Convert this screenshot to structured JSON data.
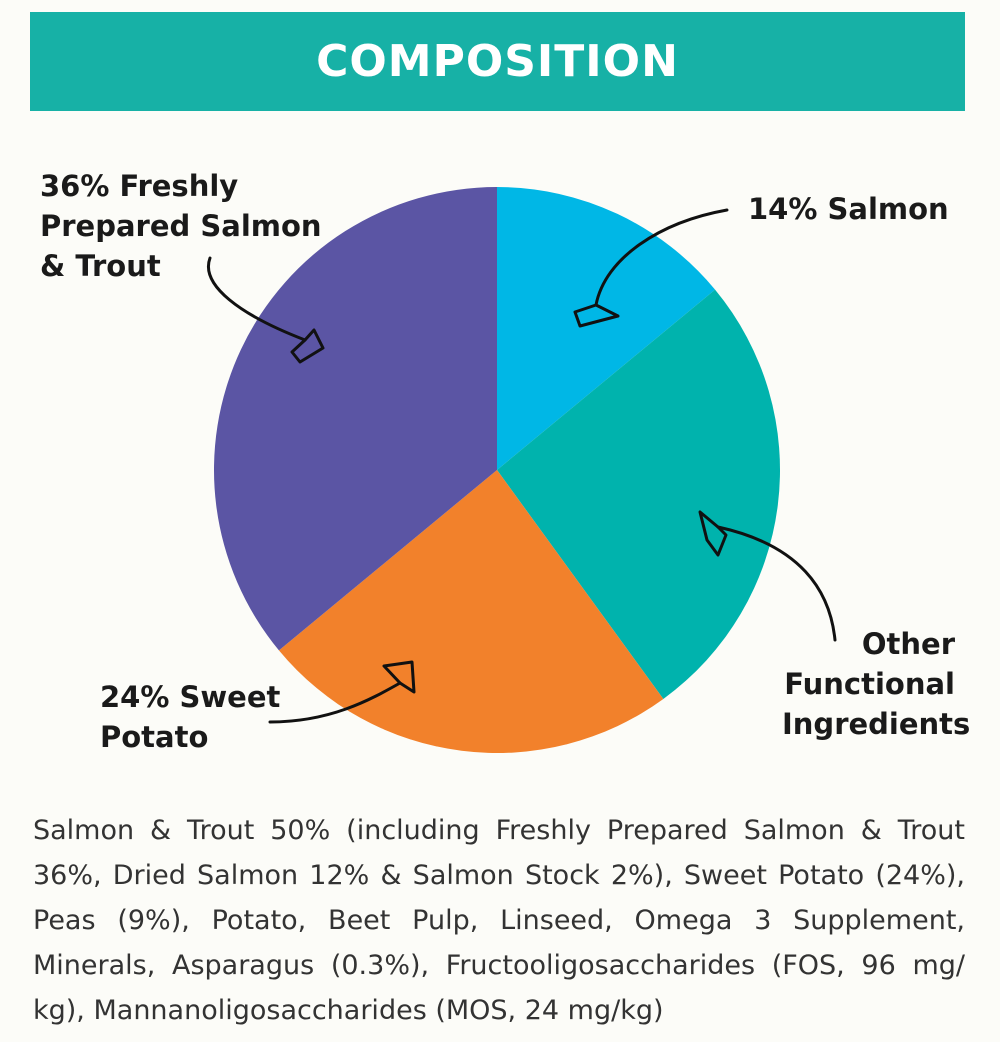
{
  "header": {
    "title": "COMPOSITION",
    "color": "#17b1a6"
  },
  "chart_data": {
    "type": "pie",
    "slices": [
      {
        "label": "14% Salmon",
        "value": 14,
        "color": "#00b7e6"
      },
      {
        "label": "Other Functional Ingredients",
        "value": 26,
        "color": "#00b3ad"
      },
      {
        "label": "24% Sweet Potato",
        "value": 24,
        "color": "#f2812b"
      },
      {
        "label": "36% Freshly Prepared Salmon & Trout",
        "value": 36,
        "color": "#5b55a4"
      }
    ],
    "start_angle_deg": 0,
    "direction": "clockwise"
  },
  "labels": {
    "salmon": [
      "14% Salmon"
    ],
    "other": [
      "Other",
      "Functional",
      "Ingredients"
    ],
    "sweet_potato": [
      "24% Sweet",
      "Potato"
    ],
    "fresh": [
      "36% Freshly",
      "Prepared Salmon",
      "& Trout"
    ]
  },
  "composition_text": "Salmon & Trout 50% (including Freshly Prepared Salmon & Trout 36%, Dried Salmon 12%  & Salmon Stock 2%), Sweet Potato (24%), Peas (9%), Potato, Beet Pulp, Linseed, Omega 3 Supplement, Minerals, Asparagus (0.3%), Fructooligosaccharides (FOS, 96 mg/ kg),  Mannanoligosaccharides (MOS, 24 mg/kg)"
}
